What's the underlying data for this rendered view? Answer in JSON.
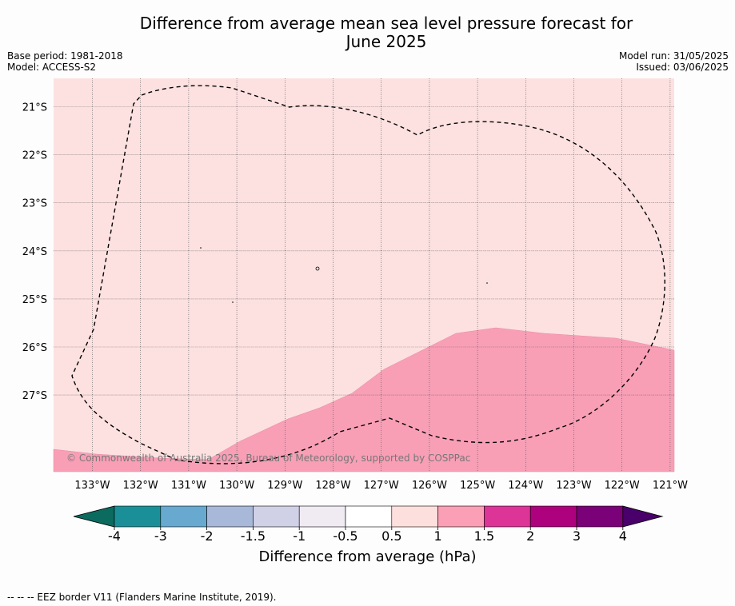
{
  "title": {
    "line1": "Difference from average mean sea level pressure forecast for",
    "line2": "June 2025"
  },
  "meta_left": {
    "base_period": "Base period: 1981-2018",
    "model": "Model: ACCESS-S2"
  },
  "meta_right": {
    "model_run": "Model run: 31/05/2025",
    "issued": "Issued: 03/06/2025"
  },
  "map": {
    "lon_labels": [
      "133°W",
      "132°W",
      "131°W",
      "130°W",
      "129°W",
      "128°W",
      "127°W",
      "126°W",
      "125°W",
      "124°W",
      "123°W",
      "122°W",
      "121°W"
    ],
    "lat_labels": [
      "21°S",
      "22°S",
      "23°S",
      "24°S",
      "25°S",
      "26°S",
      "27°S"
    ],
    "copyright": "© Commonwealth of Australia 2025, Bureau of Meteorology, supported by COSPPac",
    "background_category": "0.5 to 1",
    "lower_region_category": "1 to 1.5",
    "colors": {
      "light_pink": "#fce1e0",
      "pink": "#f89fb6"
    }
  },
  "colorbar": {
    "ticks": [
      "-4",
      "-3",
      "-2",
      "-1.5",
      "-1",
      "-0.5",
      "0.5",
      "1",
      "1.5",
      "2",
      "3",
      "4"
    ],
    "colors": [
      "#0a6b5e",
      "#1b8f97",
      "#67a9cf",
      "#a8b8d9",
      "#d0d1e6",
      "#f0ebf3",
      "#ffffff",
      "#fde0dd",
      "#fa9fb5",
      "#dd3497",
      "#ae017e",
      "#7a0177",
      "#49006a"
    ],
    "label": "Difference from average (hPa)"
  },
  "footnote": "--  --  -- EEZ border V11 (Flanders Marine Institute, 2019)."
}
